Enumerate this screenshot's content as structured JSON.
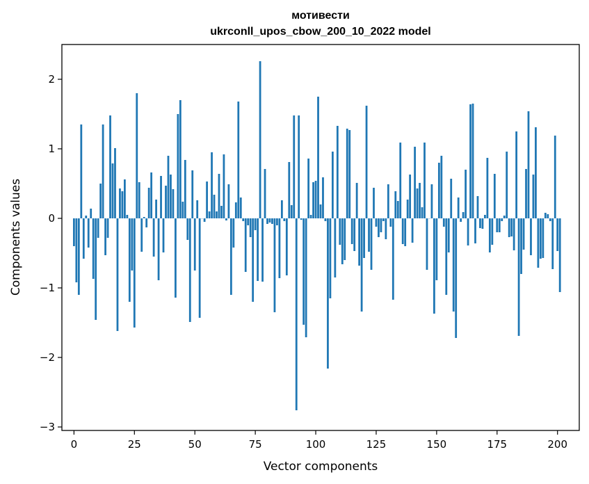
{
  "chart_data": {
    "type": "bar",
    "title_line1": "мотивести",
    "title_line2": "ukrconll_upos_cbow_200_10_2022 model",
    "xlabel": "Vector components",
    "ylabel": "Components values",
    "xlim": [
      -5,
      209
    ],
    "ylim": [
      -3.05,
      2.5
    ],
    "xticks": [
      0,
      25,
      50,
      75,
      100,
      125,
      150,
      175,
      200
    ],
    "yticks": [
      -3,
      -2,
      -1,
      0,
      1,
      2
    ],
    "ytick_labels": [
      "−3",
      "−2",
      "−1",
      "0",
      "1",
      "2"
    ],
    "bar_color": "#1f77b4",
    "grid": false,
    "values": [
      -0.4,
      -0.92,
      -1.1,
      1.35,
      -0.58,
      0.04,
      -0.42,
      0.14,
      -0.87,
      -1.46,
      -0.28,
      0.5,
      1.35,
      -0.53,
      -0.28,
      1.48,
      0.79,
      1.01,
      -1.62,
      0.43,
      0.39,
      0.56,
      0.05,
      -1.2,
      -0.75,
      -1.57,
      1.8,
      0.52,
      -0.48,
      0.02,
      -0.13,
      0.44,
      0.66,
      -0.55,
      0.27,
      -0.89,
      0.61,
      -0.49,
      0.47,
      0.9,
      0.63,
      0.42,
      -1.14,
      1.5,
      1.7,
      0.24,
      0.84,
      -0.31,
      -1.49,
      0.69,
      -0.75,
      0.26,
      -1.43,
      0.0,
      -0.05,
      0.53,
      0.1,
      0.95,
      0.34,
      0.1,
      0.64,
      0.18,
      0.92,
      -0.03,
      0.49,
      -1.1,
      -0.42,
      0.23,
      1.68,
      0.3,
      -0.04,
      -0.77,
      -0.1,
      -0.27,
      -1.2,
      -0.17,
      -0.9,
      2.26,
      -0.91,
      0.71,
      -0.08,
      -0.06,
      -0.08,
      -1.35,
      -0.1,
      -0.86,
      0.26,
      -0.04,
      -0.82,
      0.81,
      0.19,
      1.48,
      -2.76,
      1.48,
      -0.02,
      -1.53,
      -1.71,
      0.86,
      0.05,
      0.52,
      0.54,
      1.75,
      0.2,
      0.59,
      -0.04,
      -2.16,
      -1.15,
      0.96,
      -0.85,
      1.33,
      -0.38,
      -0.66,
      -0.6,
      1.29,
      1.27,
      -0.37,
      -0.47,
      0.51,
      -0.68,
      -1.34,
      -0.57,
      1.62,
      -0.48,
      -0.74,
      0.44,
      -0.12,
      -0.27,
      -0.2,
      -0.04,
      -0.3,
      0.49,
      -0.12,
      -1.17,
      0.39,
      0.25,
      1.09,
      -0.37,
      -0.4,
      0.27,
      0.63,
      -0.35,
      1.03,
      0.43,
      0.51,
      0.16,
      1.09,
      -0.74,
      0.0,
      0.49,
      -1.37,
      -0.89,
      0.8,
      0.9,
      -0.12,
      -1.1,
      -0.49,
      0.57,
      -1.34,
      -1.72,
      0.3,
      -0.05,
      0.09,
      0.7,
      -0.39,
      1.64,
      1.65,
      -0.36,
      0.32,
      -0.14,
      -0.15,
      0.05,
      0.87,
      -0.49,
      -0.38,
      0.64,
      -0.2,
      -0.2,
      -0.04,
      0.04,
      0.96,
      -0.27,
      -0.26,
      -0.46,
      1.25,
      -1.69,
      -0.8,
      -0.45,
      0.71,
      1.54,
      -0.53,
      0.63,
      1.31,
      -0.71,
      -0.58,
      -0.57,
      0.08,
      0.06,
      -0.04,
      -0.73,
      1.19
    ],
    "extra_values": [
      -0.47,
      -1.06
    ]
  }
}
